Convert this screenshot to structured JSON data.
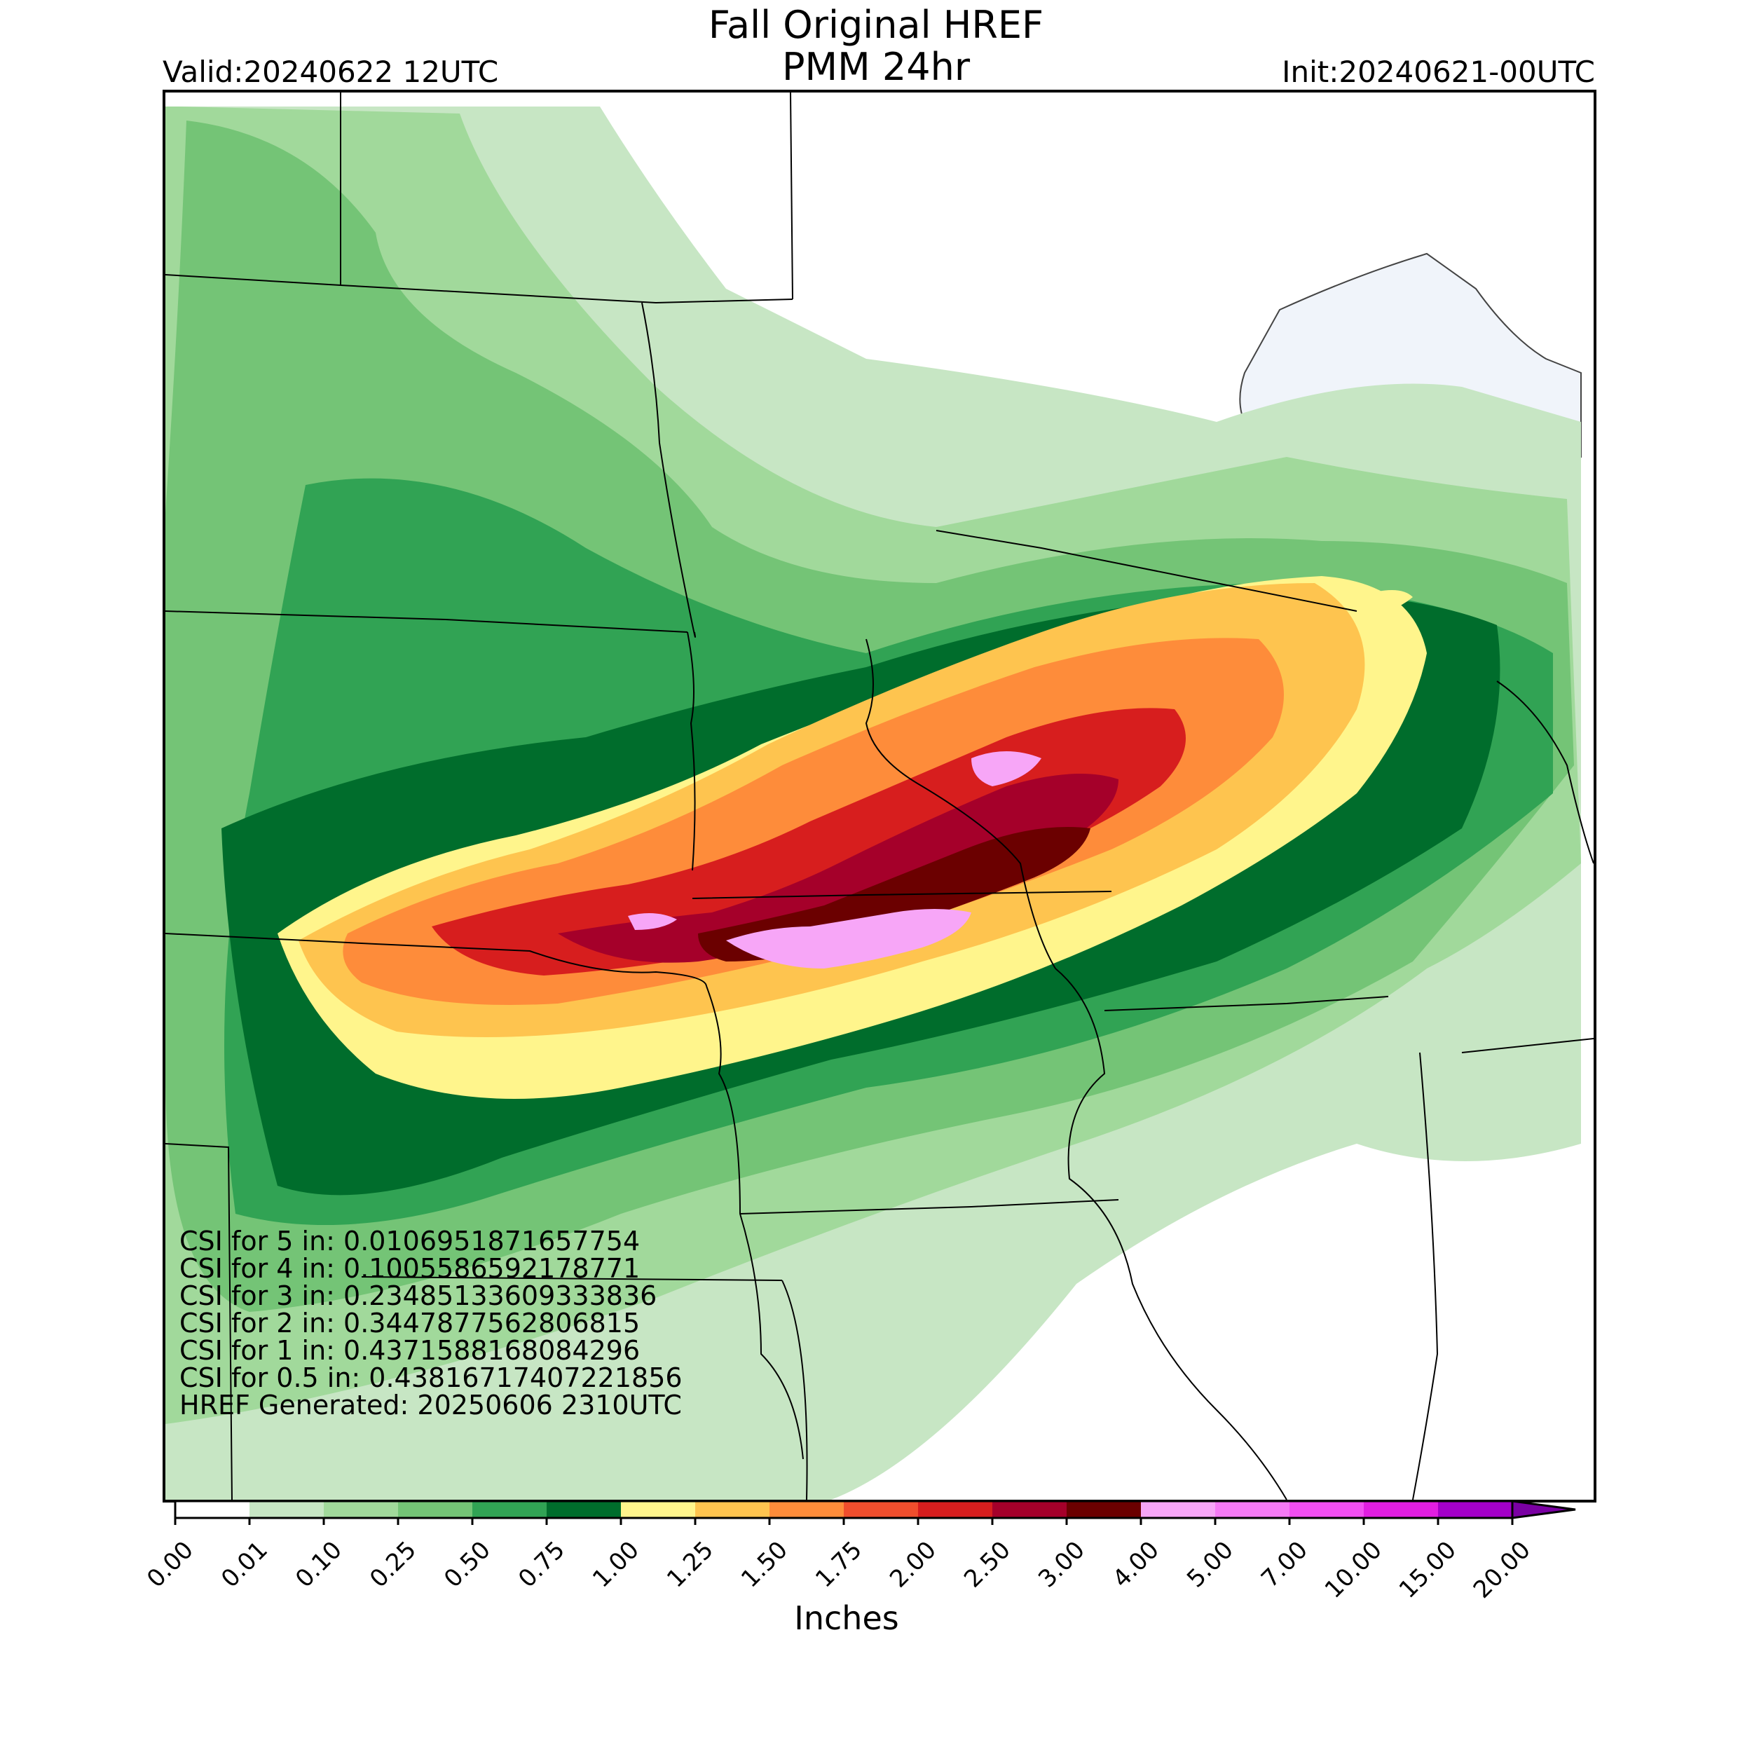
{
  "header": {
    "title_line1": "Fall Original HREF",
    "title_line2": "PMM 24hr",
    "valid": "Valid:20240622 12UTC",
    "init": "Init:20240621-00UTC"
  },
  "stats": [
    "CSI for 5 in: 0.0106951871657754",
    "CSI for 4 in: 0.1005586592178771",
    "CSI for 3 in: 0.23485133609333836",
    "CSI for 2 in: 0.3447877562806815",
    "CSI for 1 in: 0.4371588168084296",
    "CSI for 0.5 in: 0.43816717407221856",
    "HREF Generated: 20250606 2310UTC"
  ],
  "colorbar": {
    "label": "Inches",
    "ticks": [
      "0.00",
      "0.01",
      "0.10",
      "0.25",
      "0.50",
      "0.75",
      "1.00",
      "1.25",
      "1.50",
      "1.75",
      "2.00",
      "2.50",
      "3.00",
      "4.00",
      "5.00",
      "7.00",
      "10.00",
      "15.00",
      "20.00"
    ],
    "colors": [
      "#ffffff",
      "#c7e6c4",
      "#a1d99b",
      "#74c476",
      "#31a354",
      "#006d2c",
      "#fff58c",
      "#fec44f",
      "#fe8c3a",
      "#f04e2d",
      "#d71e1e",
      "#a5002a",
      "#6b0000",
      "#f7a6f7",
      "#f57af5",
      "#f24ef2",
      "#e21ee2",
      "#a300c8"
    ],
    "extend_color": "#7a00a3"
  },
  "map": {
    "precip_levels": [
      {
        "label": "0.01",
        "color": "#c7e6c4"
      },
      {
        "label": "0.10",
        "color": "#a1d99b"
      },
      {
        "label": "0.25",
        "color": "#74c476"
      },
      {
        "label": "0.50",
        "color": "#31a354"
      },
      {
        "label": "0.75",
        "color": "#006d2c"
      },
      {
        "label": "1.00",
        "color": "#fff58c"
      },
      {
        "label": "1.25",
        "color": "#fec44f"
      },
      {
        "label": "1.50",
        "color": "#fe8c3a"
      },
      {
        "label": "2.00",
        "color": "#d71e1e"
      },
      {
        "label": "2.50",
        "color": "#a5002a"
      },
      {
        "label": "3.00",
        "color": "#6b0000"
      },
      {
        "label": "4.00",
        "color": "#f7a6f7"
      }
    ],
    "water_color": "#f0f4fa",
    "boundary_color": "#000000"
  }
}
